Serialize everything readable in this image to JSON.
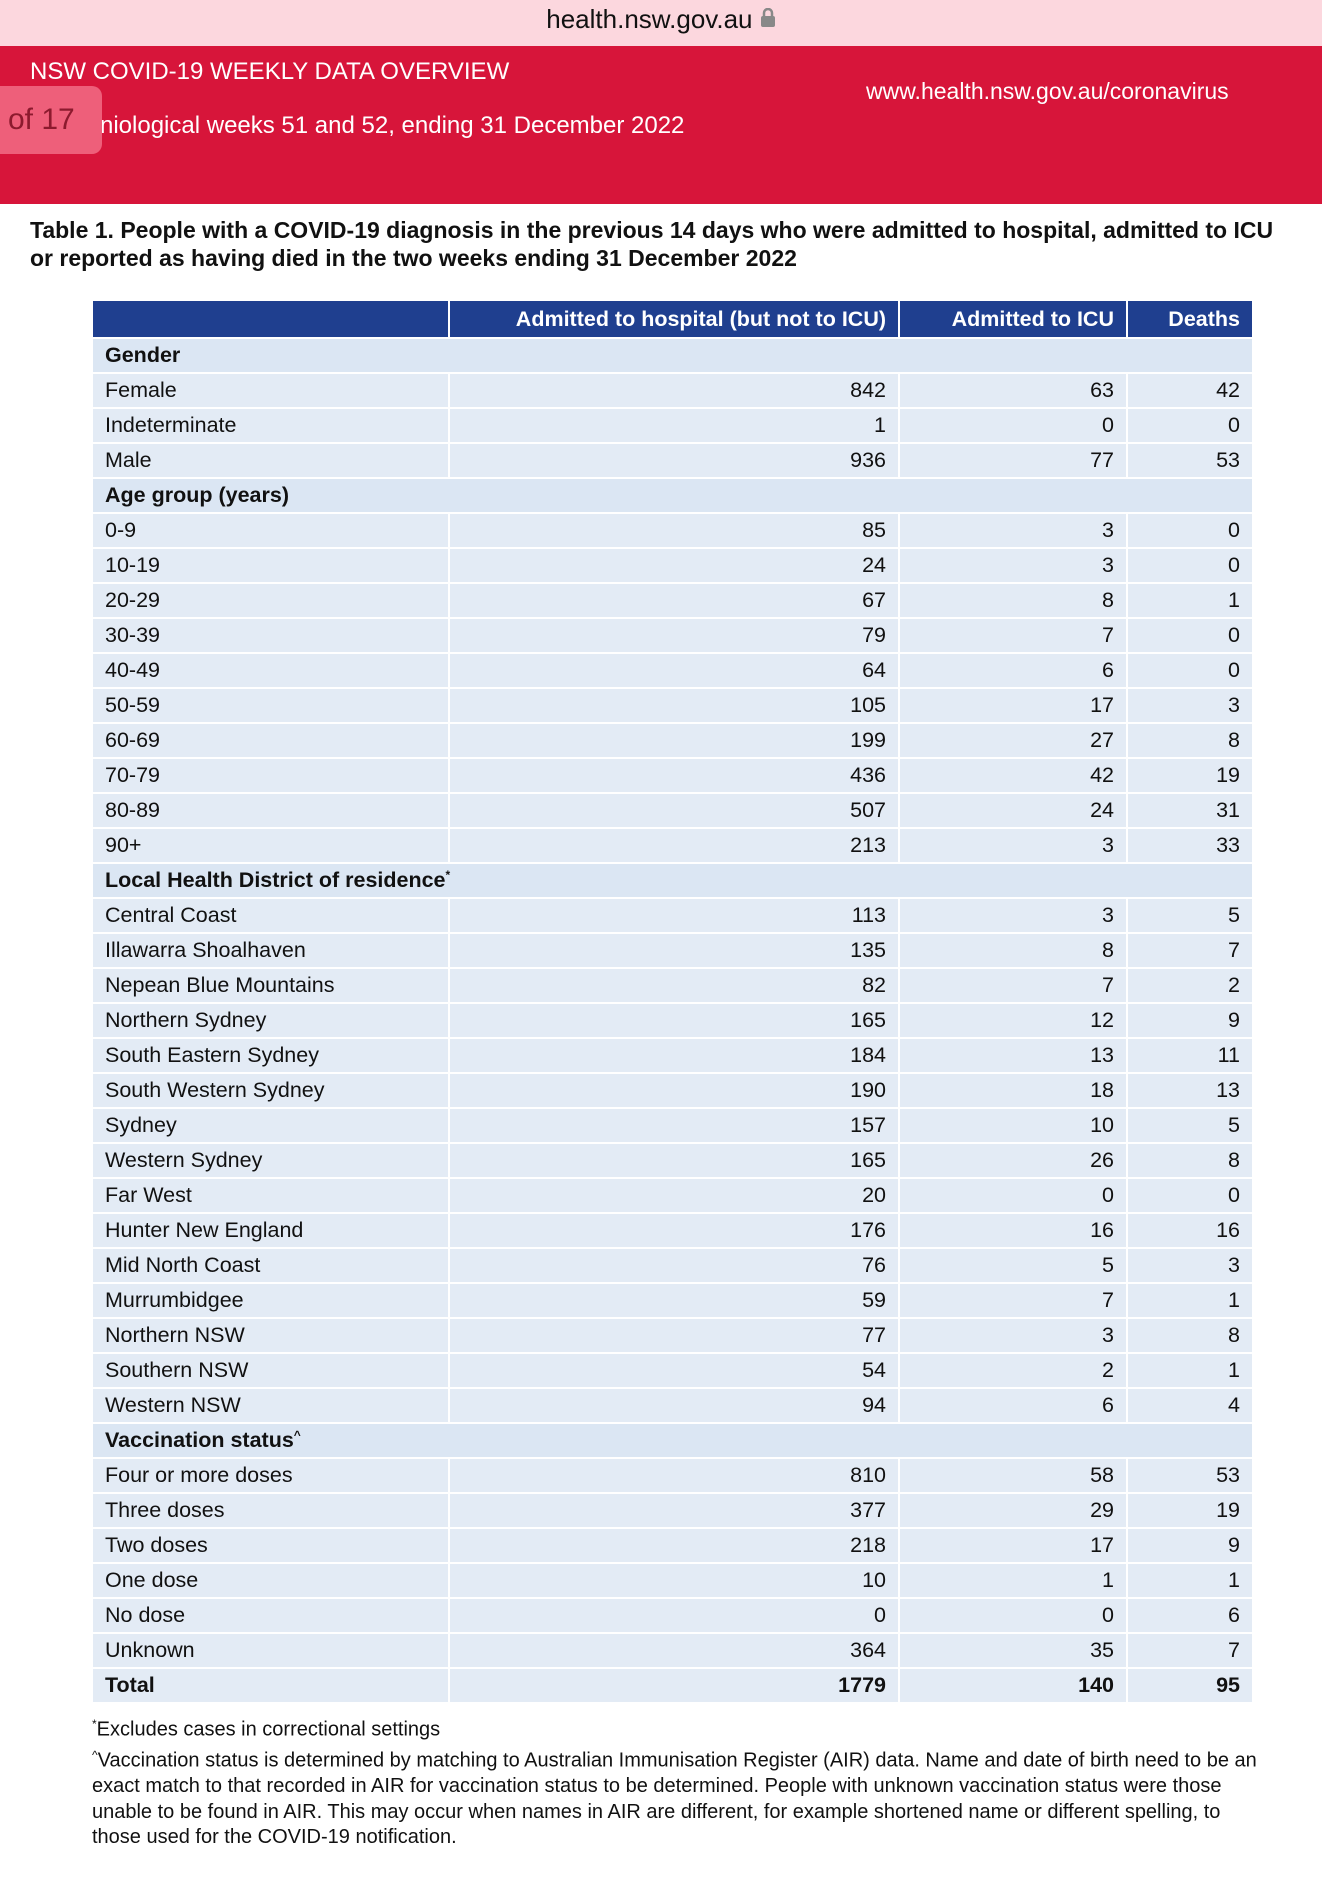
{
  "browser": {
    "url": "health.nsw.gov.au"
  },
  "header": {
    "title": "NSW COVID-19 WEEKLY DATA OVERVIEW",
    "page_badge": "of 17",
    "subtitle": "niological weeks 51 and 52, ending 31 December 2022",
    "website": "www.health.nsw.gov.au/coronavirus"
  },
  "table": {
    "caption": "Table 1. People with a COVID-19 diagnosis in the previous 14 days who were admitted to hospital, admitted to ICU or reported as having died in the two weeks ending 31 December 2022",
    "columns": [
      "Admitted to hospital (but not to ICU)",
      "Admitted to ICU",
      "Deaths"
    ],
    "sections": [
      {
        "label": "Gender",
        "rows": [
          [
            "Female",
            842,
            63,
            42
          ],
          [
            "Indeterminate",
            1,
            0,
            0
          ],
          [
            "Male",
            936,
            77,
            53
          ]
        ]
      },
      {
        "label": "Age group (years)",
        "rows": [
          [
            "0-9",
            85,
            3,
            0
          ],
          [
            "10-19",
            24,
            3,
            0
          ],
          [
            "20-29",
            67,
            8,
            1
          ],
          [
            "30-39",
            79,
            7,
            0
          ],
          [
            "40-49",
            64,
            6,
            0
          ],
          [
            "50-59",
            105,
            17,
            3
          ],
          [
            "60-69",
            199,
            27,
            8
          ],
          [
            "70-79",
            436,
            42,
            19
          ],
          [
            "80-89",
            507,
            24,
            31
          ],
          [
            "90+",
            213,
            3,
            33
          ]
        ]
      },
      {
        "label": "Local Health District of residence",
        "note": "*",
        "rows": [
          [
            "Central Coast",
            113,
            3,
            5
          ],
          [
            "Illawarra Shoalhaven",
            135,
            8,
            7
          ],
          [
            "Nepean Blue Mountains",
            82,
            7,
            2
          ],
          [
            "Northern Sydney",
            165,
            12,
            9
          ],
          [
            "South Eastern Sydney",
            184,
            13,
            11
          ],
          [
            "South Western Sydney",
            190,
            18,
            13
          ],
          [
            "Sydney",
            157,
            10,
            5
          ],
          [
            "Western Sydney",
            165,
            26,
            8
          ],
          [
            "Far West",
            20,
            0,
            0
          ],
          [
            "Hunter New England",
            176,
            16,
            16
          ],
          [
            "Mid North Coast",
            76,
            5,
            3
          ],
          [
            "Murrumbidgee",
            59,
            7,
            1
          ],
          [
            "Northern NSW",
            77,
            3,
            8
          ],
          [
            "Southern NSW",
            54,
            2,
            1
          ],
          [
            "Western NSW",
            94,
            6,
            4
          ]
        ]
      },
      {
        "label": "Vaccination status",
        "note": "^",
        "rows": [
          [
            "Four or more doses",
            810,
            58,
            53
          ],
          [
            "Three doses",
            377,
            29,
            19
          ],
          [
            "Two doses",
            218,
            17,
            9
          ],
          [
            "One dose",
            10,
            1,
            1
          ],
          [
            "No dose",
            0,
            0,
            6
          ],
          [
            "Unknown",
            364,
            35,
            7
          ]
        ]
      }
    ],
    "total": [
      "Total",
      1779,
      140,
      95
    ]
  },
  "footnotes": [
    {
      "mark": "*",
      "text": "Excludes cases in correctional settings"
    },
    {
      "mark": "^",
      "text": "Vaccination status is determined by matching to Australian Immunisation Register (AIR) data. Name and date of birth need to be an exact match to that recorded in AIR for vaccination status to be determined. People with unknown vaccination status were those unable to be found in AIR. This may occur when names in AIR are different, for example shortened name or different spelling, to those used for the COVID-19 notification."
    }
  ]
}
